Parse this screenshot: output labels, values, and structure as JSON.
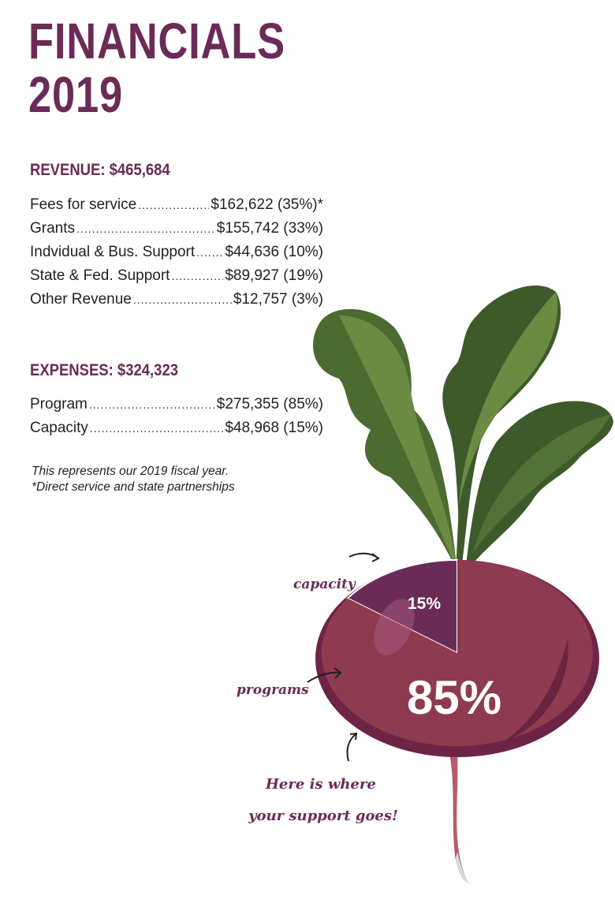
{
  "title": {
    "line1": "FINANCIALS",
    "line2": "2019"
  },
  "revenue": {
    "heading": "REVENUE: $465,684",
    "items": [
      {
        "label": "Fees for service",
        "value": "$162,622 (35%)*"
      },
      {
        "label": "Grants",
        "value": "$155,742 (33%)"
      },
      {
        "label": "Indvidual & Bus. Support",
        "value": "$44,636 (10%)"
      },
      {
        "label": "State & Fed. Support",
        "value": "$89,927 (19%)"
      },
      {
        "label": "Other Revenue",
        "value": "$12,757 (3%)"
      }
    ]
  },
  "expenses": {
    "heading": "EXPENSES: $324,323",
    "items": [
      {
        "label": "Program",
        "value": "$275,355 (85%)"
      },
      {
        "label": "Capacity",
        "value": "$48,968 (15%)"
      }
    ]
  },
  "notes": {
    "line1": "This represents our 2019 fiscal year.",
    "line2": "*Direct service and state partnerships"
  },
  "chart_data": {
    "type": "pie",
    "title": "",
    "slices": [
      {
        "label": "programs",
        "value": 85,
        "display": "85%"
      },
      {
        "label": "capacity",
        "value": 15,
        "display": "15%"
      }
    ],
    "callout": "Here is where your support goes!",
    "colors": {
      "programs": "#8e3a4f",
      "capacity": "#6b2b57",
      "leaves_dark": "#3e5a2a",
      "leaves_light": "#6b8a42"
    }
  },
  "colors": {
    "accent": "#6b2b57",
    "text": "#231f20"
  }
}
